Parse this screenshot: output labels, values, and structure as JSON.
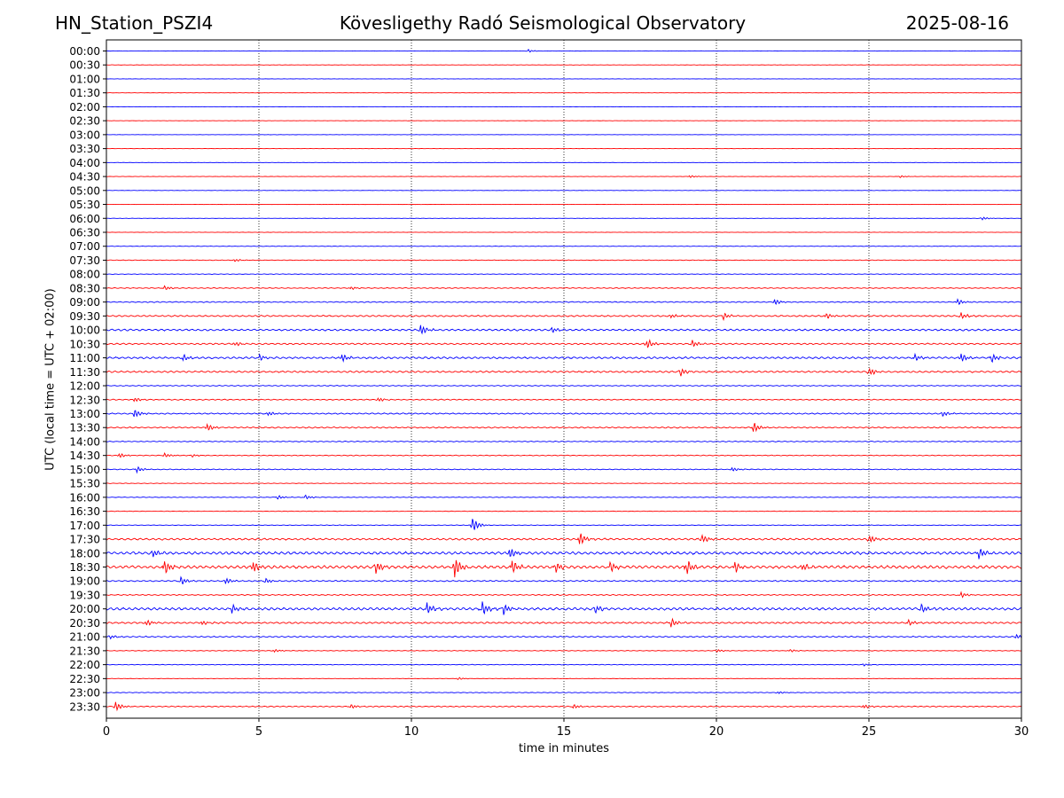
{
  "header": {
    "station": "HN_Station_PSZI4",
    "observatory": "Kövesligethy Radó Seismological Observatory",
    "date": "2025-08-16"
  },
  "chart_data": {
    "type": "line",
    "title": "Kövesligethy Radó Seismological Observatory",
    "xlabel": "time in minutes",
    "ylabel": "UTC (local time = UTC + 02:00)",
    "xlim": [
      0,
      30
    ],
    "x_ticks": [
      0,
      5,
      10,
      15,
      20,
      25,
      30
    ],
    "grid": "vertical dotted at x ticks",
    "colors": {
      "even_rows": "#0000ff",
      "odd_rows": "#ff0000",
      "grid": "#000000"
    },
    "rows": [
      "00:00",
      "00:30",
      "01:00",
      "01:30",
      "02:00",
      "02:30",
      "03:00",
      "03:30",
      "04:00",
      "04:30",
      "05:00",
      "05:30",
      "06:00",
      "06:30",
      "07:00",
      "07:30",
      "08:00",
      "08:30",
      "09:00",
      "09:30",
      "10:00",
      "10:30",
      "11:00",
      "11:30",
      "12:00",
      "12:30",
      "13:00",
      "13:30",
      "14:00",
      "14:30",
      "15:00",
      "15:30",
      "16:00",
      "16:30",
      "17:00",
      "17:30",
      "18:00",
      "18:30",
      "19:00",
      "19:30",
      "20:00",
      "20:30",
      "21:00",
      "21:30",
      "22:00",
      "22:30",
      "23:00",
      "23:30"
    ],
    "noise_level": [
      0.15,
      0.15,
      0.12,
      0.12,
      0.12,
      0.12,
      0.12,
      0.12,
      0.12,
      0.15,
      0.12,
      0.12,
      0.15,
      0.15,
      0.2,
      0.3,
      0.25,
      0.4,
      0.5,
      0.7,
      0.9,
      0.7,
      0.9,
      0.8,
      0.4,
      0.5,
      0.6,
      0.6,
      0.4,
      0.4,
      0.4,
      0.25,
      0.3,
      0.25,
      0.3,
      0.9,
      1.3,
      1.4,
      0.6,
      0.5,
      1.2,
      0.8,
      0.6,
      0.3,
      0.3,
      0.2,
      0.3,
      0.5
    ],
    "events": [
      {
        "row": "00:00",
        "minute": 13.8,
        "amplitude": 2
      },
      {
        "row": "04:30",
        "minute": 19.1,
        "amplitude": 2
      },
      {
        "row": "04:30",
        "minute": 26.0,
        "amplitude": 1.5
      },
      {
        "row": "06:00",
        "minute": 28.7,
        "amplitude": 2
      },
      {
        "row": "07:30",
        "minute": 4.2,
        "amplitude": 2
      },
      {
        "row": "08:30",
        "minute": 1.9,
        "amplitude": 3
      },
      {
        "row": "08:30",
        "minute": 8.0,
        "amplitude": 2
      },
      {
        "row": "09:00",
        "minute": 21.9,
        "amplitude": 4
      },
      {
        "row": "09:00",
        "minute": 27.9,
        "amplitude": 4
      },
      {
        "row": "09:30",
        "minute": 18.5,
        "amplitude": 3
      },
      {
        "row": "09:30",
        "minute": 20.2,
        "amplitude": 5
      },
      {
        "row": "09:30",
        "minute": 23.6,
        "amplitude": 4
      },
      {
        "row": "09:30",
        "minute": 28.0,
        "amplitude": 5
      },
      {
        "row": "10:00",
        "minute": 10.3,
        "amplitude": 7
      },
      {
        "row": "10:00",
        "minute": 14.6,
        "amplitude": 4
      },
      {
        "row": "10:30",
        "minute": 17.7,
        "amplitude": 7
      },
      {
        "row": "10:30",
        "minute": 19.2,
        "amplitude": 5
      },
      {
        "row": "10:30",
        "minute": 4.2,
        "amplitude": 3
      },
      {
        "row": "11:00",
        "minute": 2.5,
        "amplitude": 5
      },
      {
        "row": "11:00",
        "minute": 5.0,
        "amplitude": 4
      },
      {
        "row": "11:00",
        "minute": 7.7,
        "amplitude": 6
      },
      {
        "row": "11:00",
        "minute": 26.5,
        "amplitude": 5
      },
      {
        "row": "11:00",
        "minute": 28.0,
        "amplitude": 7
      },
      {
        "row": "11:00",
        "minute": 29.0,
        "amplitude": 6
      },
      {
        "row": "11:30",
        "minute": 18.8,
        "amplitude": 6
      },
      {
        "row": "11:30",
        "minute": 25.0,
        "amplitude": 6
      },
      {
        "row": "12:30",
        "minute": 0.9,
        "amplitude": 3
      },
      {
        "row": "12:30",
        "minute": 8.9,
        "amplitude": 3
      },
      {
        "row": "13:00",
        "minute": 0.9,
        "amplitude": 6
      },
      {
        "row": "13:00",
        "minute": 5.3,
        "amplitude": 3
      },
      {
        "row": "13:00",
        "minute": 27.4,
        "amplitude": 4
      },
      {
        "row": "13:30",
        "minute": 3.3,
        "amplitude": 5
      },
      {
        "row": "13:30",
        "minute": 21.2,
        "amplitude": 7
      },
      {
        "row": "14:30",
        "minute": 0.4,
        "amplitude": 4
      },
      {
        "row": "14:30",
        "minute": 1.9,
        "amplitude": 3
      },
      {
        "row": "14:30",
        "minute": 2.8,
        "amplitude": 2
      },
      {
        "row": "15:00",
        "minute": 1.0,
        "amplitude": 4
      },
      {
        "row": "15:00",
        "minute": 20.5,
        "amplitude": 3
      },
      {
        "row": "16:00",
        "minute": 5.6,
        "amplitude": 3
      },
      {
        "row": "16:00",
        "minute": 6.5,
        "amplitude": 3
      },
      {
        "row": "17:00",
        "minute": 12.0,
        "amplitude": 9
      },
      {
        "row": "17:30",
        "minute": 15.5,
        "amplitude": 9
      },
      {
        "row": "17:30",
        "minute": 19.5,
        "amplitude": 6
      },
      {
        "row": "17:30",
        "minute": 25.0,
        "amplitude": 6
      },
      {
        "row": "18:00",
        "minute": 1.5,
        "amplitude": 6
      },
      {
        "row": "18:00",
        "minute": 13.2,
        "amplitude": 8
      },
      {
        "row": "18:00",
        "minute": 28.6,
        "amplitude": 7
      },
      {
        "row": "18:30",
        "minute": 1.9,
        "amplitude": 9
      },
      {
        "row": "18:30",
        "minute": 4.8,
        "amplitude": 8
      },
      {
        "row": "18:30",
        "minute": 8.8,
        "amplitude": 9
      },
      {
        "row": "18:30",
        "minute": 11.4,
        "amplitude": 14
      },
      {
        "row": "18:30",
        "minute": 13.3,
        "amplitude": 8
      },
      {
        "row": "18:30",
        "minute": 14.7,
        "amplitude": 9
      },
      {
        "row": "18:30",
        "minute": 16.5,
        "amplitude": 7
      },
      {
        "row": "18:30",
        "minute": 19.0,
        "amplitude": 12
      },
      {
        "row": "18:30",
        "minute": 20.6,
        "amplitude": 7
      },
      {
        "row": "18:30",
        "minute": 22.8,
        "amplitude": 5
      },
      {
        "row": "19:00",
        "minute": 2.4,
        "amplitude": 7
      },
      {
        "row": "19:00",
        "minute": 3.9,
        "amplitude": 4
      },
      {
        "row": "19:00",
        "minute": 5.2,
        "amplitude": 4
      },
      {
        "row": "19:30",
        "minute": 28.0,
        "amplitude": 4
      },
      {
        "row": "20:00",
        "minute": 4.1,
        "amplitude": 6
      },
      {
        "row": "20:00",
        "minute": 10.5,
        "amplitude": 8
      },
      {
        "row": "20:00",
        "minute": 12.3,
        "amplitude": 10
      },
      {
        "row": "20:00",
        "minute": 13.0,
        "amplitude": 8
      },
      {
        "row": "20:00",
        "minute": 16.0,
        "amplitude": 6
      },
      {
        "row": "20:00",
        "minute": 26.7,
        "amplitude": 6
      },
      {
        "row": "20:30",
        "minute": 1.3,
        "amplitude": 4
      },
      {
        "row": "20:30",
        "minute": 3.1,
        "amplitude": 4
      },
      {
        "row": "20:30",
        "minute": 18.5,
        "amplitude": 6
      },
      {
        "row": "20:30",
        "minute": 26.3,
        "amplitude": 4
      },
      {
        "row": "21:00",
        "minute": 0.1,
        "amplitude": 3
      },
      {
        "row": "21:00",
        "minute": 29.8,
        "amplitude": 4
      },
      {
        "row": "21:30",
        "minute": 5.5,
        "amplitude": 2
      },
      {
        "row": "21:30",
        "minute": 20.0,
        "amplitude": 2
      },
      {
        "row": "21:30",
        "minute": 22.4,
        "amplitude": 2
      },
      {
        "row": "22:00",
        "minute": 24.8,
        "amplitude": 2
      },
      {
        "row": "22:30",
        "minute": 11.5,
        "amplitude": 2
      },
      {
        "row": "23:00",
        "minute": 22.0,
        "amplitude": 2
      },
      {
        "row": "23:30",
        "minute": 0.3,
        "amplitude": 6
      },
      {
        "row": "23:30",
        "minute": 8.0,
        "amplitude": 3
      },
      {
        "row": "23:30",
        "minute": 15.3,
        "amplitude": 3
      },
      {
        "row": "23:30",
        "minute": 24.8,
        "amplitude": 3
      }
    ]
  }
}
